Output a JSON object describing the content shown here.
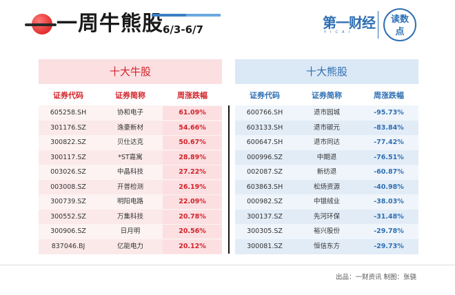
{
  "header": {
    "title": "一周牛熊股",
    "date_range": "6/3-6/7",
    "brand": "第一财经",
    "brand_sub": "YICAI",
    "seal_line1": "读数",
    "seal_line2": "点"
  },
  "bull": {
    "title": "十大牛股",
    "columns": [
      "证券代码",
      "证券简称",
      "周涨跌幅"
    ],
    "rows": [
      {
        "code": "605258.SH",
        "name": "协和电子",
        "pct": "61.09%"
      },
      {
        "code": "301176.SZ",
        "name": "逸豪新材",
        "pct": "54.66%"
      },
      {
        "code": "300822.SZ",
        "name": "贝仕达克",
        "pct": "50.67%"
      },
      {
        "code": "300117.SZ",
        "name": "*ST嘉寓",
        "pct": "28.89%"
      },
      {
        "code": "003026.SZ",
        "name": "中晶科技",
        "pct": "27.22%"
      },
      {
        "code": "003008.SZ",
        "name": "开普检测",
        "pct": "26.19%"
      },
      {
        "code": "300739.SZ",
        "name": "明阳电路",
        "pct": "22.09%"
      },
      {
        "code": "300552.SZ",
        "name": "万集科技",
        "pct": "20.78%"
      },
      {
        "code": "300906.SZ",
        "name": "日月明",
        "pct": "20.56%"
      },
      {
        "code": "837046.BJ",
        "name": "亿能电力",
        "pct": "20.12%"
      }
    ]
  },
  "bear": {
    "title": "十大熊股",
    "columns": [
      "证券代码",
      "证券简称",
      "周涨跌幅"
    ],
    "rows": [
      {
        "code": "600766.SH",
        "name": "退市园城",
        "pct": "-95.73%"
      },
      {
        "code": "603133.SH",
        "name": "退市碳元",
        "pct": "-83.84%"
      },
      {
        "code": "600647.SH",
        "name": "退市同达",
        "pct": "-77.42%"
      },
      {
        "code": "000996.SZ",
        "name": "中期退",
        "pct": "-76.51%"
      },
      {
        "code": "002087.SZ",
        "name": "新纺退",
        "pct": "-60.87%"
      },
      {
        "code": "603863.SH",
        "name": "松炀资源",
        "pct": "-40.98%"
      },
      {
        "code": "000982.SZ",
        "name": "中银绒业",
        "pct": "-38.03%"
      },
      {
        "code": "300137.SZ",
        "name": "先河环保",
        "pct": "-31.48%"
      },
      {
        "code": "300305.SZ",
        "name": "裕兴股份",
        "pct": "-29.78%"
      },
      {
        "code": "300081.SZ",
        "name": "恒信东方",
        "pct": "-29.73%"
      }
    ]
  },
  "footer": {
    "source": "出品：一财资讯  制图：张骁"
  },
  "colors": {
    "bull": "#d2232a",
    "bear": "#2e6fb3"
  }
}
